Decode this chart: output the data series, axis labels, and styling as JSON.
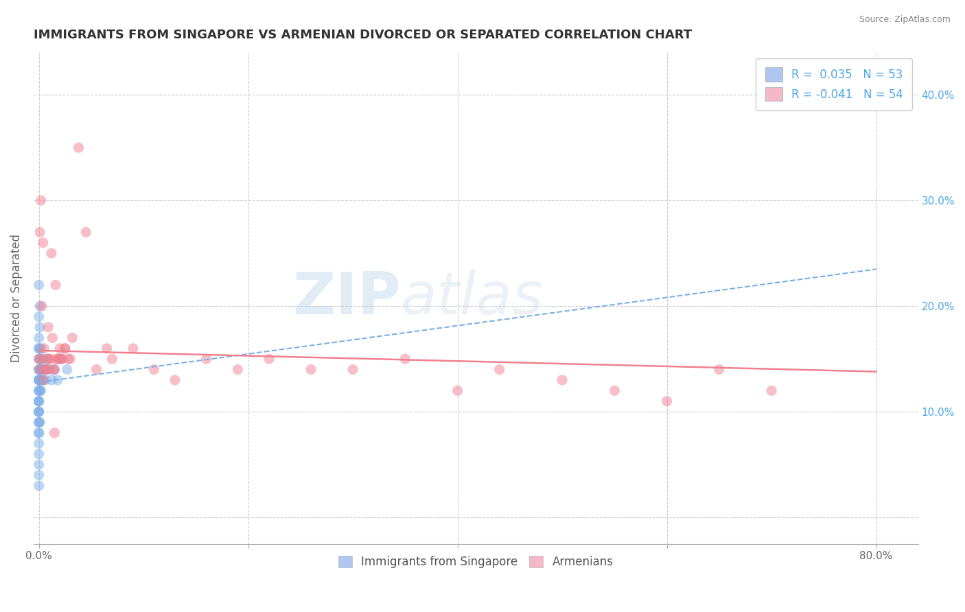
{
  "title": "IMMIGRANTS FROM SINGAPORE VS ARMENIAN DIVORCED OR SEPARATED CORRELATION CHART",
  "source": "Source: ZipAtlas.com",
  "xlim": [
    -0.005,
    0.84
  ],
  "ylim": [
    -0.025,
    0.44
  ],
  "x_tick_positions": [
    0.0,
    0.8
  ],
  "x_tick_labels": [
    "0.0%",
    "80.0%"
  ],
  "y_tick_positions": [
    0.0,
    0.1,
    0.2,
    0.3,
    0.4
  ],
  "y_tick_labels_right": [
    "",
    "10.0%",
    "20.0%",
    "30.0%",
    "40.0%"
  ],
  "legend_entries": [
    {
      "label": "R =  0.035   N = 53",
      "color": "#aec6f0"
    },
    {
      "label": "R = -0.041   N = 54",
      "color": "#f4b8c8"
    }
  ],
  "blue_scatter_x": [
    0.0,
    0.0,
    0.0,
    0.0,
    0.0,
    0.0,
    0.0,
    0.0,
    0.0,
    0.0,
    0.0,
    0.0,
    0.0,
    0.0,
    0.0,
    0.0,
    0.0,
    0.0,
    0.0,
    0.0,
    0.001,
    0.001,
    0.001,
    0.001,
    0.002,
    0.002,
    0.002,
    0.003,
    0.003,
    0.004,
    0.004,
    0.005,
    0.006,
    0.007,
    0.008,
    0.01,
    0.012,
    0.015,
    0.018,
    0.022,
    0.027,
    0.001,
    0.001,
    0.0,
    0.0,
    0.0,
    0.0,
    0.0,
    0.001,
    0.002,
    0.0,
    0.0,
    0.0
  ],
  "blue_scatter_y": [
    0.22,
    0.14,
    0.12,
    0.1,
    0.09,
    0.11,
    0.13,
    0.08,
    0.15,
    0.16,
    0.14,
    0.13,
    0.12,
    0.11,
    0.1,
    0.09,
    0.08,
    0.07,
    0.06,
    0.05,
    0.14,
    0.15,
    0.13,
    0.12,
    0.16,
    0.14,
    0.13,
    0.15,
    0.14,
    0.13,
    0.15,
    0.14,
    0.13,
    0.14,
    0.15,
    0.14,
    0.13,
    0.14,
    0.13,
    0.15,
    0.14,
    0.18,
    0.2,
    0.17,
    0.19,
    0.16,
    0.11,
    0.1,
    0.09,
    0.12,
    0.03,
    0.04,
    0.13
  ],
  "pink_scatter_x": [
    0.0,
    0.001,
    0.002,
    0.003,
    0.004,
    0.005,
    0.007,
    0.009,
    0.011,
    0.013,
    0.015,
    0.017,
    0.019,
    0.02,
    0.022,
    0.025,
    0.028,
    0.032,
    0.038,
    0.021,
    0.016,
    0.012,
    0.008,
    0.045,
    0.055,
    0.065,
    0.07,
    0.09,
    0.11,
    0.13,
    0.16,
    0.19,
    0.22,
    0.26,
    0.3,
    0.35,
    0.4,
    0.44,
    0.5,
    0.55,
    0.6,
    0.65,
    0.7,
    0.03,
    0.025,
    0.018,
    0.014,
    0.01,
    0.006,
    0.002,
    0.001,
    0.004,
    0.008,
    0.015
  ],
  "pink_scatter_y": [
    0.15,
    0.27,
    0.3,
    0.2,
    0.26,
    0.16,
    0.14,
    0.18,
    0.15,
    0.17,
    0.14,
    0.15,
    0.15,
    0.16,
    0.15,
    0.16,
    0.15,
    0.17,
    0.35,
    0.15,
    0.22,
    0.25,
    0.15,
    0.27,
    0.14,
    0.16,
    0.15,
    0.16,
    0.14,
    0.13,
    0.15,
    0.14,
    0.15,
    0.14,
    0.14,
    0.15,
    0.12,
    0.14,
    0.13,
    0.12,
    0.11,
    0.14,
    0.12,
    0.15,
    0.16,
    0.15,
    0.14,
    0.15,
    0.14,
    0.15,
    0.14,
    0.13,
    0.14,
    0.08
  ],
  "blue_line_x": [
    0.0,
    0.8
  ],
  "blue_line_y": [
    0.128,
    0.235
  ],
  "pink_line_x": [
    0.0,
    0.8
  ],
  "pink_line_y": [
    0.158,
    0.138
  ],
  "watermark_zip": "ZIP",
  "watermark_atlas": "atlas",
  "scatter_size": 120,
  "scatter_alpha": 0.5,
  "blue_color": "#7aaee8",
  "pink_color": "#f08090",
  "blue_line_color": "#7aaee8",
  "pink_line_color": "#f08090",
  "legend_blue_color": "#aec6f0",
  "legend_pink_color": "#f4b8c8",
  "grid_color": "#cccccc",
  "background_color": "#ffffff",
  "title_color": "#333333",
  "title_fontsize": 13,
  "axis_label_color": "#666666",
  "source_color": "#888888",
  "right_tick_color": "#4da6e8",
  "bottom_label_color": "#555555"
}
